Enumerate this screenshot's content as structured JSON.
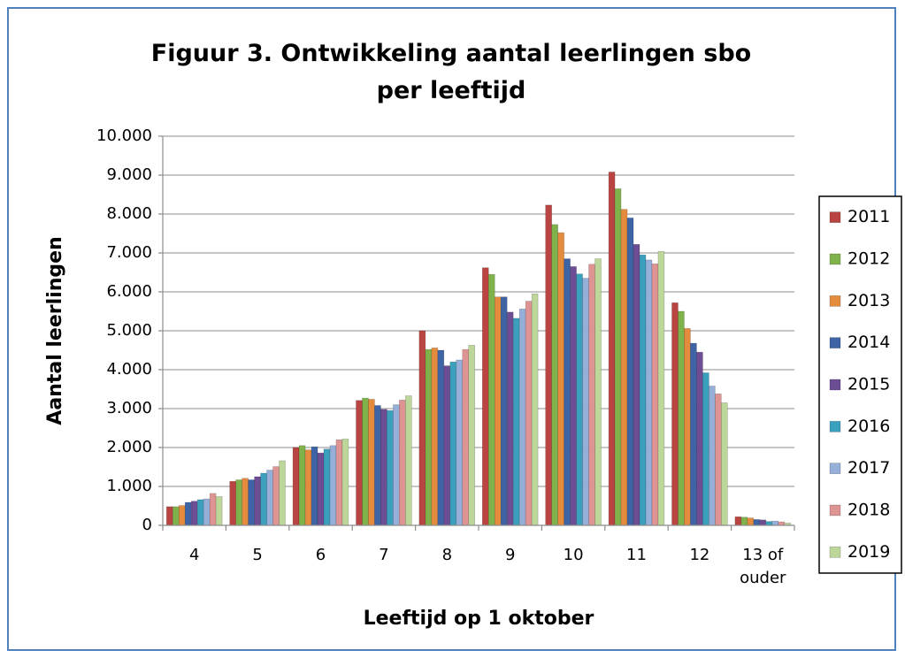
{
  "chart_data": {
    "type": "bar",
    "title": "Figuur 3. Ontwikkeling aantal leerlingen sbo per leeftijd",
    "x_label": "Leeftijd op 1 oktober",
    "y_label": "Aantal leerlingen",
    "categories": [
      "4",
      "5",
      "6",
      "7",
      "8",
      "9",
      "10",
      "11",
      "12",
      "13 of\nouder"
    ],
    "series": [
      {
        "name": "2011",
        "color": "#b94441",
        "values": [
          480,
          1130,
          2000,
          3210,
          5000,
          6620,
          8230,
          9080,
          5720,
          220
        ]
      },
      {
        "name": "2012",
        "color": "#7fb24a",
        "values": [
          480,
          1170,
          2050,
          3270,
          4520,
          6450,
          7730,
          8650,
          5500,
          210
        ]
      },
      {
        "name": "2013",
        "color": "#e58b3e",
        "values": [
          510,
          1210,
          1940,
          3240,
          4560,
          5870,
          7520,
          8120,
          5060,
          190
        ]
      },
      {
        "name": "2014",
        "color": "#3e64a6",
        "values": [
          590,
          1170,
          2020,
          3080,
          4500,
          5870,
          6850,
          7900,
          4680,
          150
        ]
      },
      {
        "name": "2015",
        "color": "#6d4e94",
        "values": [
          620,
          1250,
          1860,
          2980,
          4100,
          5480,
          6650,
          7220,
          4450,
          140
        ]
      },
      {
        "name": "2016",
        "color": "#3aa0bd",
        "values": [
          660,
          1340,
          1960,
          2950,
          4200,
          5320,
          6460,
          6950,
          3920,
          100
        ]
      },
      {
        "name": "2017",
        "color": "#95afd8",
        "values": [
          680,
          1420,
          2050,
          3100,
          4250,
          5560,
          6350,
          6820,
          3580,
          110
        ]
      },
      {
        "name": "2018",
        "color": "#df9494",
        "values": [
          820,
          1510,
          2200,
          3220,
          4520,
          5760,
          6710,
          6720,
          3380,
          90
        ]
      },
      {
        "name": "2019",
        "color": "#bdd69a",
        "values": [
          740,
          1660,
          2220,
          3330,
          4630,
          5950,
          6850,
          7040,
          3150,
          60
        ]
      }
    ],
    "ylim": [
      0,
      10000
    ],
    "yticks": [
      0,
      {
        "value": 1000,
        "label": "1.000"
      },
      {
        "value": 2000,
        "label": "2.000"
      },
      {
        "value": 3000,
        "label": "3.000"
      },
      {
        "value": 4000,
        "label": "4.000"
      },
      {
        "value": 5000,
        "label": "5.000"
      },
      {
        "value": 6000,
        "label": "6.000"
      },
      {
        "value": 7000,
        "label": "7.000"
      },
      {
        "value": 8000,
        "label": "8.000"
      },
      {
        "value": 9000,
        "label": "9.000"
      },
      {
        "value": 10000,
        "label": "10.000"
      }
    ],
    "grid": true,
    "legend": "right"
  }
}
